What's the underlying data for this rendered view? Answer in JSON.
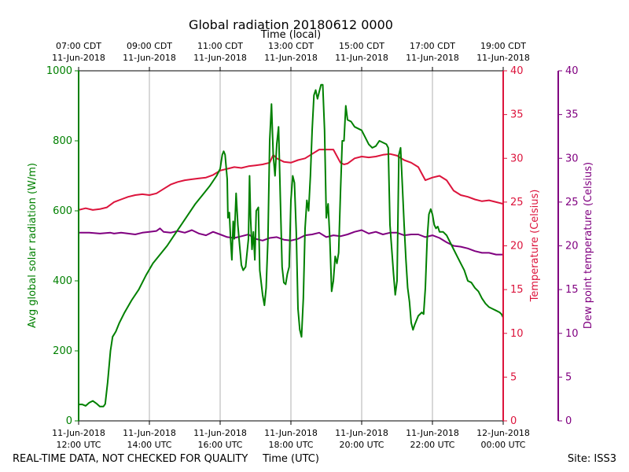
{
  "chart_data": {
    "type": "line",
    "title": "Global radiation 20180612 0000",
    "top_xlabel": "Time (local)",
    "xlabel": "Time (UTC)",
    "ylabel_left": "Avg global solar radiation (W/m)",
    "ylabel_right1": "Temperature (Celsius)",
    "ylabel_right2": "Dew point temperature (Celsius)",
    "footer_left": "REAL-TIME DATA, NOT CHECKED FOR QUALITY",
    "footer_right": "Site: ISS3",
    "x_unit": "hours since 11-Jun-2018 12:00 UTC",
    "xlim": [
      0,
      12
    ],
    "ylim_left": [
      0,
      1000
    ],
    "ylim_right1": [
      0,
      40
    ],
    "ylim_right2": [
      0,
      40
    ],
    "grid": true,
    "colors": {
      "radiation": "#008000",
      "temperature": "#dc143c",
      "dewpoint": "#800080",
      "grid": "#b0b0b0"
    },
    "x_ticks_bottom": [
      {
        "x": 0,
        "line1": "11-Jun-2018",
        "line2": "12:00 UTC"
      },
      {
        "x": 2,
        "line1": "11-Jun-2018",
        "line2": "14:00 UTC"
      },
      {
        "x": 4,
        "line1": "11-Jun-2018",
        "line2": "16:00 UTC"
      },
      {
        "x": 6,
        "line1": "11-Jun-2018",
        "line2": "18:00 UTC"
      },
      {
        "x": 8,
        "line1": "11-Jun-2018",
        "line2": "20:00 UTC"
      },
      {
        "x": 10,
        "line1": "11-Jun-2018",
        "line2": "22:00 UTC"
      },
      {
        "x": 12,
        "line1": "12-Jun-2018",
        "line2": "00:00 UTC"
      }
    ],
    "x_ticks_top": [
      {
        "x": 0,
        "line1": "07:00 CDT",
        "line2": "11-Jun-2018"
      },
      {
        "x": 2,
        "line1": "09:00 CDT",
        "line2": "11-Jun-2018"
      },
      {
        "x": 4,
        "line1": "11:00 CDT",
        "line2": "11-Jun-2018"
      },
      {
        "x": 6,
        "line1": "13:00 CDT",
        "line2": "11-Jun-2018"
      },
      {
        "x": 8,
        "line1": "15:00 CDT",
        "line2": "11-Jun-2018"
      },
      {
        "x": 10,
        "line1": "17:00 CDT",
        "line2": "11-Jun-2018"
      },
      {
        "x": 12,
        "line1": "19:00 CDT",
        "line2": "11-Jun-2018"
      }
    ],
    "y_ticks_left": [
      0,
      200,
      400,
      600,
      800,
      1000
    ],
    "y_ticks_right1": [
      0,
      5,
      10,
      15,
      20,
      25,
      30,
      35,
      40
    ],
    "y_ticks_right2": [
      0,
      5,
      10,
      15,
      20,
      25,
      30,
      35,
      40
    ],
    "series": [
      {
        "name": "Avg global solar radiation",
        "axis": "left",
        "color": "#008000",
        "points": [
          [
            0,
            47
          ],
          [
            0.1,
            47
          ],
          [
            0.2,
            43
          ],
          [
            0.3,
            52
          ],
          [
            0.4,
            57
          ],
          [
            0.5,
            50
          ],
          [
            0.6,
            41
          ],
          [
            0.7,
            41
          ],
          [
            0.75,
            48
          ],
          [
            0.82,
            110
          ],
          [
            0.9,
            200
          ],
          [
            0.96,
            240
          ],
          [
            1.05,
            255
          ],
          [
            1.15,
            280
          ],
          [
            1.3,
            310
          ],
          [
            1.5,
            345
          ],
          [
            1.7,
            375
          ],
          [
            1.9,
            415
          ],
          [
            2.1,
            450
          ],
          [
            2.3,
            475
          ],
          [
            2.5,
            500
          ],
          [
            2.7,
            530
          ],
          [
            2.9,
            560
          ],
          [
            3.1,
            590
          ],
          [
            3.3,
            620
          ],
          [
            3.5,
            645
          ],
          [
            3.7,
            670
          ],
          [
            3.9,
            700
          ],
          [
            4.0,
            720
          ],
          [
            4.06,
            760
          ],
          [
            4.1,
            770
          ],
          [
            4.14,
            760
          ],
          [
            4.2,
            690
          ],
          [
            4.22,
            580
          ],
          [
            4.26,
            595
          ],
          [
            4.3,
            510
          ],
          [
            4.33,
            460
          ],
          [
            4.37,
            570
          ],
          [
            4.4,
            520
          ],
          [
            4.45,
            650
          ],
          [
            4.5,
            560
          ],
          [
            4.55,
            500
          ],
          [
            4.6,
            445
          ],
          [
            4.65,
            430
          ],
          [
            4.72,
            440
          ],
          [
            4.8,
            520
          ],
          [
            4.83,
            700
          ],
          [
            4.86,
            580
          ],
          [
            4.9,
            490
          ],
          [
            4.94,
            540
          ],
          [
            4.98,
            460
          ],
          [
            5.02,
            600
          ],
          [
            5.08,
            610
          ],
          [
            5.12,
            430
          ],
          [
            5.2,
            360
          ],
          [
            5.25,
            330
          ],
          [
            5.3,
            380
          ],
          [
            5.35,
            520
          ],
          [
            5.4,
            800
          ],
          [
            5.45,
            905
          ],
          [
            5.5,
            760
          ],
          [
            5.55,
            700
          ],
          [
            5.6,
            790
          ],
          [
            5.65,
            840
          ],
          [
            5.7,
            640
          ],
          [
            5.75,
            440
          ],
          [
            5.8,
            395
          ],
          [
            5.85,
            390
          ],
          [
            5.9,
            420
          ],
          [
            5.95,
            440
          ],
          [
            6.0,
            630
          ],
          [
            6.05,
            700
          ],
          [
            6.1,
            680
          ],
          [
            6.15,
            540
          ],
          [
            6.2,
            320
          ],
          [
            6.25,
            260
          ],
          [
            6.3,
            240
          ],
          [
            6.35,
            350
          ],
          [
            6.4,
            550
          ],
          [
            6.45,
            630
          ],
          [
            6.5,
            600
          ],
          [
            6.55,
            700
          ],
          [
            6.6,
            830
          ],
          [
            6.65,
            930
          ],
          [
            6.7,
            945
          ],
          [
            6.75,
            920
          ],
          [
            6.8,
            940
          ],
          [
            6.85,
            960
          ],
          [
            6.9,
            960
          ],
          [
            6.95,
            830
          ],
          [
            7.0,
            580
          ],
          [
            7.05,
            620
          ],
          [
            7.1,
            520
          ],
          [
            7.15,
            370
          ],
          [
            7.2,
            400
          ],
          [
            7.25,
            470
          ],
          [
            7.3,
            450
          ],
          [
            7.35,
            480
          ],
          [
            7.4,
            650
          ],
          [
            7.45,
            800
          ],
          [
            7.5,
            800
          ],
          [
            7.55,
            900
          ],
          [
            7.6,
            860
          ],
          [
            7.7,
            855
          ],
          [
            7.8,
            840
          ],
          [
            8.0,
            830
          ],
          [
            8.2,
            790
          ],
          [
            8.3,
            780
          ],
          [
            8.4,
            785
          ],
          [
            8.5,
            800
          ],
          [
            8.7,
            790
          ],
          [
            8.75,
            780
          ],
          [
            8.8,
            560
          ],
          [
            8.9,
            420
          ],
          [
            8.95,
            360
          ],
          [
            9.0,
            400
          ],
          [
            9.05,
            760
          ],
          [
            9.1,
            780
          ],
          [
            9.15,
            670
          ],
          [
            9.2,
            560
          ],
          [
            9.25,
            460
          ],
          [
            9.3,
            380
          ],
          [
            9.35,
            340
          ],
          [
            9.4,
            280
          ],
          [
            9.45,
            260
          ],
          [
            9.5,
            275
          ],
          [
            9.6,
            300
          ],
          [
            9.7,
            310
          ],
          [
            9.75,
            305
          ],
          [
            9.8,
            380
          ],
          [
            9.85,
            520
          ],
          [
            9.9,
            590
          ],
          [
            9.95,
            605
          ],
          [
            10.0,
            590
          ],
          [
            10.05,
            560
          ],
          [
            10.1,
            550
          ],
          [
            10.15,
            555
          ],
          [
            10.2,
            540
          ],
          [
            10.3,
            540
          ],
          [
            10.4,
            530
          ],
          [
            10.5,
            510
          ],
          [
            10.6,
            490
          ],
          [
            10.7,
            470
          ],
          [
            10.8,
            450
          ],
          [
            10.9,
            430
          ],
          [
            11.0,
            400
          ],
          [
            11.1,
            395
          ],
          [
            11.2,
            380
          ],
          [
            11.3,
            370
          ],
          [
            11.4,
            350
          ],
          [
            11.5,
            335
          ],
          [
            11.6,
            325
          ],
          [
            11.7,
            320
          ],
          [
            11.8,
            315
          ],
          [
            11.9,
            310
          ],
          [
            11.95,
            305
          ],
          [
            12.0,
            295
          ]
        ]
      },
      {
        "name": "Temperature",
        "axis": "right1",
        "color": "#dc143c",
        "points": [
          [
            0,
            24.1
          ],
          [
            0.2,
            24.3
          ],
          [
            0.4,
            24.1
          ],
          [
            0.6,
            24.2
          ],
          [
            0.8,
            24.4
          ],
          [
            1.0,
            25.0
          ],
          [
            1.2,
            25.3
          ],
          [
            1.4,
            25.6
          ],
          [
            1.6,
            25.8
          ],
          [
            1.8,
            25.9
          ],
          [
            2.0,
            25.8
          ],
          [
            2.2,
            26.0
          ],
          [
            2.4,
            26.5
          ],
          [
            2.6,
            27.0
          ],
          [
            2.8,
            27.3
          ],
          [
            3.0,
            27.5
          ],
          [
            3.2,
            27.6
          ],
          [
            3.4,
            27.7
          ],
          [
            3.6,
            27.8
          ],
          [
            3.8,
            28.1
          ],
          [
            4.0,
            28.6
          ],
          [
            4.2,
            28.8
          ],
          [
            4.4,
            29.0
          ],
          [
            4.6,
            28.9
          ],
          [
            4.8,
            29.1
          ],
          [
            5.0,
            29.2
          ],
          [
            5.2,
            29.3
          ],
          [
            5.4,
            29.5
          ],
          [
            5.5,
            30.4
          ],
          [
            5.6,
            30.0
          ],
          [
            5.7,
            29.8
          ],
          [
            5.8,
            29.6
          ],
          [
            6.0,
            29.5
          ],
          [
            6.2,
            29.8
          ],
          [
            6.4,
            30.0
          ],
          [
            6.6,
            30.5
          ],
          [
            6.8,
            31.0
          ],
          [
            7.0,
            31.0
          ],
          [
            7.2,
            31.0
          ],
          [
            7.4,
            29.5
          ],
          [
            7.5,
            29.3
          ],
          [
            7.6,
            29.4
          ],
          [
            7.8,
            30.0
          ],
          [
            8.0,
            30.2
          ],
          [
            8.2,
            30.1
          ],
          [
            8.4,
            30.2
          ],
          [
            8.6,
            30.4
          ],
          [
            8.8,
            30.5
          ],
          [
            9.0,
            30.3
          ],
          [
            9.2,
            29.8
          ],
          [
            9.4,
            29.5
          ],
          [
            9.6,
            29.0
          ],
          [
            9.8,
            27.5
          ],
          [
            10.0,
            27.8
          ],
          [
            10.2,
            28.0
          ],
          [
            10.4,
            27.5
          ],
          [
            10.6,
            26.3
          ],
          [
            10.8,
            25.8
          ],
          [
            11.0,
            25.6
          ],
          [
            11.2,
            25.3
          ],
          [
            11.4,
            25.1
          ],
          [
            11.6,
            25.2
          ],
          [
            11.8,
            25.0
          ],
          [
            12.0,
            24.8
          ]
        ]
      },
      {
        "name": "Dew point temperature",
        "axis": "right2",
        "color": "#800080",
        "points": [
          [
            0,
            21.5
          ],
          [
            0.3,
            21.5
          ],
          [
            0.6,
            21.4
          ],
          [
            0.9,
            21.5
          ],
          [
            1.0,
            21.4
          ],
          [
            1.2,
            21.5
          ],
          [
            1.4,
            21.4
          ],
          [
            1.6,
            21.3
          ],
          [
            1.8,
            21.5
          ],
          [
            2.0,
            21.6
          ],
          [
            2.2,
            21.7
          ],
          [
            2.3,
            22.0
          ],
          [
            2.4,
            21.6
          ],
          [
            2.6,
            21.5
          ],
          [
            2.8,
            21.7
          ],
          [
            3.0,
            21.5
          ],
          [
            3.2,
            21.8
          ],
          [
            3.4,
            21.4
          ],
          [
            3.6,
            21.2
          ],
          [
            3.8,
            21.6
          ],
          [
            4.0,
            21.3
          ],
          [
            4.2,
            21.0
          ],
          [
            4.4,
            20.9
          ],
          [
            4.6,
            21.1
          ],
          [
            4.8,
            21.3
          ],
          [
            5.0,
            20.8
          ],
          [
            5.2,
            20.6
          ],
          [
            5.4,
            20.9
          ],
          [
            5.6,
            21.0
          ],
          [
            5.8,
            20.7
          ],
          [
            6.0,
            20.6
          ],
          [
            6.2,
            20.8
          ],
          [
            6.4,
            21.2
          ],
          [
            6.6,
            21.3
          ],
          [
            6.8,
            21.5
          ],
          [
            7.0,
            21.0
          ],
          [
            7.2,
            21.2
          ],
          [
            7.4,
            21.1
          ],
          [
            7.6,
            21.3
          ],
          [
            7.8,
            21.6
          ],
          [
            8.0,
            21.8
          ],
          [
            8.2,
            21.4
          ],
          [
            8.4,
            21.6
          ],
          [
            8.6,
            21.3
          ],
          [
            8.8,
            21.5
          ],
          [
            9.0,
            21.5
          ],
          [
            9.2,
            21.2
          ],
          [
            9.4,
            21.3
          ],
          [
            9.6,
            21.3
          ],
          [
            9.8,
            21.0
          ],
          [
            10.0,
            21.2
          ],
          [
            10.2,
            20.9
          ],
          [
            10.4,
            20.4
          ],
          [
            10.6,
            20.0
          ],
          [
            10.8,
            19.9
          ],
          [
            11.0,
            19.7
          ],
          [
            11.2,
            19.4
          ],
          [
            11.4,
            19.2
          ],
          [
            11.6,
            19.2
          ],
          [
            11.8,
            19.0
          ],
          [
            12.0,
            19.0
          ]
        ]
      }
    ]
  }
}
